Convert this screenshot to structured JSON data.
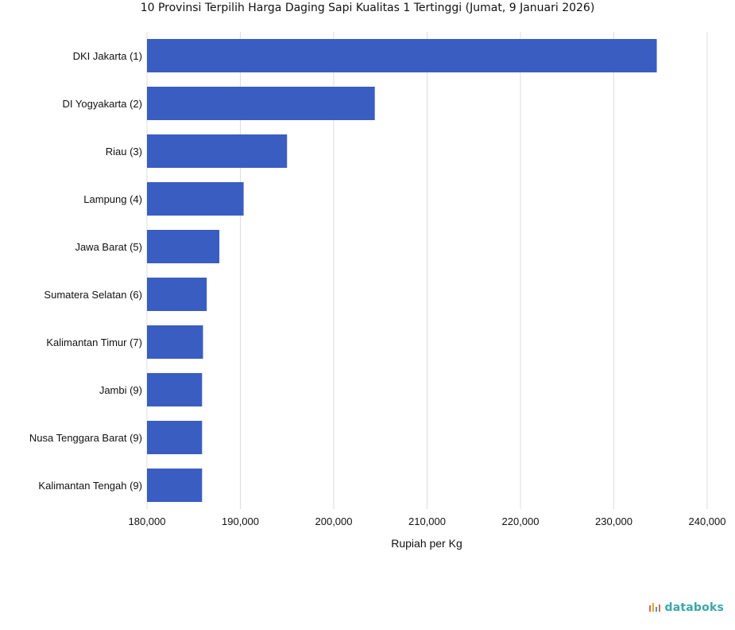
{
  "chart_data": {
    "type": "bar",
    "orientation": "horizontal",
    "title": "10 Provinsi Terpilih Harga Daging Sapi Kualitas 1 Tertinggi (Jumat, 9 Januari 2026)",
    "xlabel": "Rupiah per Kg",
    "ylabel": "",
    "xlim": [
      180000,
      240000
    ],
    "xticks": [
      180000,
      190000,
      200000,
      210000,
      220000,
      230000,
      240000
    ],
    "xtick_labels": [
      "180,000",
      "190,000",
      "200,000",
      "210,000",
      "220,000",
      "230,000",
      "240,000"
    ],
    "grid": "vertical",
    "categories": [
      "DKI Jakarta (1)",
      "DI Yogyakarta (2)",
      "Riau (3)",
      "Lampung (4)",
      "Jawa Barat (5)",
      "Sumatera Selatan (6)",
      "Kalimantan Timur (7)",
      "Jambi (9)",
      "Nusa Tenggara Barat (9)",
      "Kalimantan Tengah (9)"
    ],
    "values": [
      234600,
      204400,
      195000,
      190350,
      187750,
      186400,
      186000,
      185900,
      185900,
      185900
    ],
    "bar_color": "#3a5dc2"
  },
  "brand": {
    "name": "databoks",
    "icon": "databoks-logo-icon",
    "color": "#3aa6a8"
  }
}
